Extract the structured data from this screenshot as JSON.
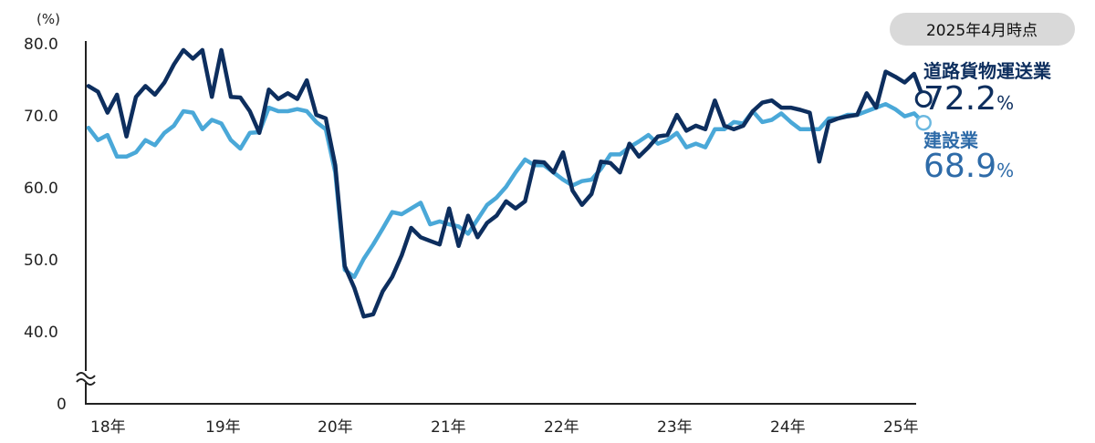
{
  "chart_data": {
    "type": "line",
    "unit_label": "(%)",
    "y_ticks": [
      "80.0",
      "70.0",
      "60.0",
      "50.0",
      "40.0",
      "0"
    ],
    "y_axis_break": true,
    "ylim": [
      40,
      80
    ],
    "x_ticks": [
      "18年",
      "19年",
      "20年",
      "21年",
      "22年",
      "23年",
      "24年",
      "25年"
    ],
    "x_range": [
      "2018-01",
      "2025-04"
    ],
    "as_of_badge": "2025年4月時点",
    "grid": false,
    "series": [
      {
        "name": "道路貨物運送業",
        "color": "#0d2e5e",
        "latest_value": "72.2",
        "latest_unit": "%",
        "values": [
          74.0,
          73.2,
          70.3,
          72.8,
          67.0,
          72.5,
          74.0,
          72.8,
          74.5,
          77.0,
          79.0,
          77.8,
          79.0,
          72.5,
          79.0,
          72.5,
          72.4,
          70.5,
          67.5,
          73.5,
          72.2,
          73.0,
          72.2,
          74.8,
          70.0,
          69.5,
          63.0,
          49.0,
          46.0,
          42.0,
          42.3,
          45.5,
          47.5,
          50.5,
          54.3,
          53.0,
          52.5,
          52.0,
          57.0,
          51.8,
          56.0,
          53.0,
          55.0,
          56.0,
          58.0,
          57.0,
          58.0,
          63.5,
          63.4,
          62.0,
          64.8,
          59.5,
          57.5,
          59.0,
          63.5,
          63.3,
          62.0,
          66.0,
          64.2,
          65.5,
          67.0,
          67.2,
          70.0,
          67.8,
          68.5,
          68.0,
          72.0,
          68.5,
          68.0,
          68.5,
          70.5,
          71.7,
          72.0,
          71.0,
          71.0,
          70.7,
          70.3,
          63.5,
          69.0,
          69.5,
          69.8,
          70.0,
          73.0,
          71.0,
          76.0,
          75.3,
          74.5,
          75.7,
          72.2
        ]
      },
      {
        "name": "建設業",
        "color": "#4aa8d8",
        "latest_value": "68.9",
        "latest_unit": "%",
        "values": [
          68.2,
          66.5,
          67.2,
          64.2,
          64.2,
          64.8,
          66.5,
          65.8,
          67.5,
          68.5,
          70.5,
          70.3,
          68.0,
          69.3,
          68.8,
          66.5,
          65.3,
          67.5,
          67.6,
          71.0,
          70.5,
          70.5,
          70.8,
          70.5,
          69.0,
          68.0,
          62.0,
          48.5,
          47.5,
          50.0,
          52.0,
          54.2,
          56.5,
          56.2,
          57.0,
          57.8,
          54.8,
          55.2,
          54.8,
          54.5,
          53.5,
          55.5,
          57.5,
          58.5,
          60.0,
          62.0,
          63.8,
          63.0,
          63.0,
          62.0,
          61.0,
          60.2,
          60.8,
          61.0,
          62.5,
          64.5,
          64.5,
          65.5,
          66.3,
          67.2,
          66.0,
          66.5,
          67.5,
          65.5,
          66.0,
          65.5,
          68.0,
          68.0,
          69.0,
          68.8,
          70.5,
          69.0,
          69.3,
          70.2,
          69.0,
          68.0,
          68.0,
          68.0,
          69.5,
          69.5,
          70.0,
          70.0,
          70.5,
          71.0,
          71.5,
          70.8,
          69.8,
          70.2,
          68.9
        ]
      }
    ]
  }
}
